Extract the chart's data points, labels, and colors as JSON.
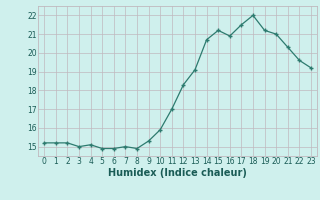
{
  "x": [
    0,
    1,
    2,
    3,
    4,
    5,
    6,
    7,
    8,
    9,
    10,
    11,
    12,
    13,
    14,
    15,
    16,
    17,
    18,
    19,
    20,
    21,
    22,
    23
  ],
  "y": [
    15.2,
    15.2,
    15.2,
    15.0,
    15.1,
    14.9,
    14.9,
    15.0,
    14.9,
    15.3,
    15.9,
    17.0,
    18.3,
    19.1,
    20.7,
    21.2,
    20.9,
    21.5,
    22.0,
    21.2,
    21.0,
    20.3,
    19.6,
    19.2
  ],
  "xlabel": "Humidex (Indice chaleur)",
  "ylim": [
    14.5,
    22.5
  ],
  "xlim": [
    -0.5,
    23.5
  ],
  "yticks": [
    15,
    16,
    17,
    18,
    19,
    20,
    21,
    22
  ],
  "xticks": [
    0,
    1,
    2,
    3,
    4,
    5,
    6,
    7,
    8,
    9,
    10,
    11,
    12,
    13,
    14,
    15,
    16,
    17,
    18,
    19,
    20,
    21,
    22,
    23
  ],
  "line_color": "#2d7b6f",
  "marker": "+",
  "bg_color": "#cff0ed",
  "grid_color": "#c0b8be",
  "tick_label_color": "#1a5c56",
  "xlabel_color": "#1a5c56"
}
